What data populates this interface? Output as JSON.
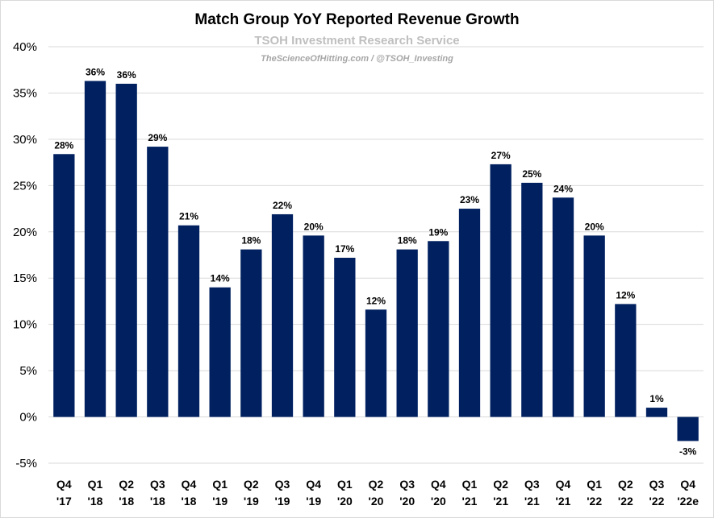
{
  "chart_data": {
    "type": "bar",
    "title": "Match Group YoY Reported Revenue Growth",
    "subtitle": "TSOH Investment Research Service",
    "source": "TheScienceOfHitting.com / @TSOH_Investing",
    "xlabel": "",
    "ylabel": "",
    "ylim": [
      -5,
      40
    ],
    "yticks": [
      "-5%",
      "0%",
      "5%",
      "10%",
      "15%",
      "20%",
      "25%",
      "30%",
      "35%",
      "40%"
    ],
    "ytick_values": [
      -5,
      0,
      5,
      10,
      15,
      20,
      25,
      30,
      35,
      40
    ],
    "grid": true,
    "legend": "none",
    "bar_color": "#002060",
    "categories": [
      [
        "Q4",
        "'17"
      ],
      [
        "Q1",
        "'18"
      ],
      [
        "Q2",
        "'18"
      ],
      [
        "Q3",
        "'18"
      ],
      [
        "Q4",
        "'18"
      ],
      [
        "Q1",
        "'19"
      ],
      [
        "Q2",
        "'19"
      ],
      [
        "Q3",
        "'19"
      ],
      [
        "Q4",
        "'19"
      ],
      [
        "Q1",
        "'20"
      ],
      [
        "Q2",
        "'20"
      ],
      [
        "Q3",
        "'20"
      ],
      [
        "Q4",
        "'20"
      ],
      [
        "Q1",
        "'21"
      ],
      [
        "Q2",
        "'21"
      ],
      [
        "Q3",
        "'21"
      ],
      [
        "Q4",
        "'21"
      ],
      [
        "Q1",
        "'22"
      ],
      [
        "Q2",
        "'22"
      ],
      [
        "Q3",
        "'22"
      ],
      [
        "Q4",
        "'22e"
      ]
    ],
    "values": [
      28.4,
      36.3,
      36.0,
      29.2,
      20.7,
      14.0,
      18.1,
      21.9,
      19.6,
      17.2,
      11.6,
      18.1,
      19.0,
      22.5,
      27.3,
      25.3,
      23.7,
      19.6,
      12.2,
      1.0,
      -2.6
    ],
    "data_labels": [
      "28%",
      "36%",
      "36%",
      "29%",
      "21%",
      "14%",
      "18%",
      "22%",
      "20%",
      "17%",
      "12%",
      "18%",
      "19%",
      "23%",
      "27%",
      "25%",
      "24%",
      "20%",
      "12%",
      "1%",
      "-3%"
    ]
  }
}
